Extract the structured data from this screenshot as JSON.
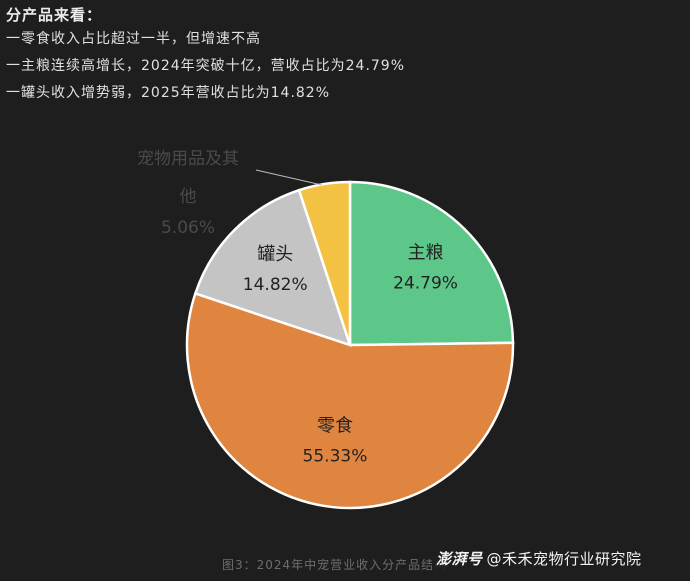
{
  "summary": {
    "heading": "分产品来看：",
    "lines": [
      "一零食收入占比超过一半，但增速不高",
      "一主粮连续高增长，2024年突破十亿，营收占比为24.79%",
      "一罐头收入增势弱，2025年营收占比为14.82%"
    ]
  },
  "chart_data": {
    "type": "pie",
    "start_angle_deg": 0,
    "direction": "clockwise",
    "slices": [
      {
        "name": "主粮",
        "label": "24.79%",
        "value": 24.79,
        "color": "#5dc78a"
      },
      {
        "name": "零食",
        "label": "55.33%",
        "value": 55.33,
        "color": "#e08540"
      },
      {
        "name": "罐头",
        "label": "14.82%",
        "value": 14.82,
        "color": "#c4c4c4"
      },
      {
        "name": "宠物用品及其他",
        "label": "5.06%",
        "value": 5.06,
        "color": "#f4c242"
      }
    ]
  },
  "caption": "图3：2024年中宠营业收入分产品结构",
  "watermark": {
    "brand": "澎湃号",
    "account": "@禾禾宠物行业研究院"
  }
}
